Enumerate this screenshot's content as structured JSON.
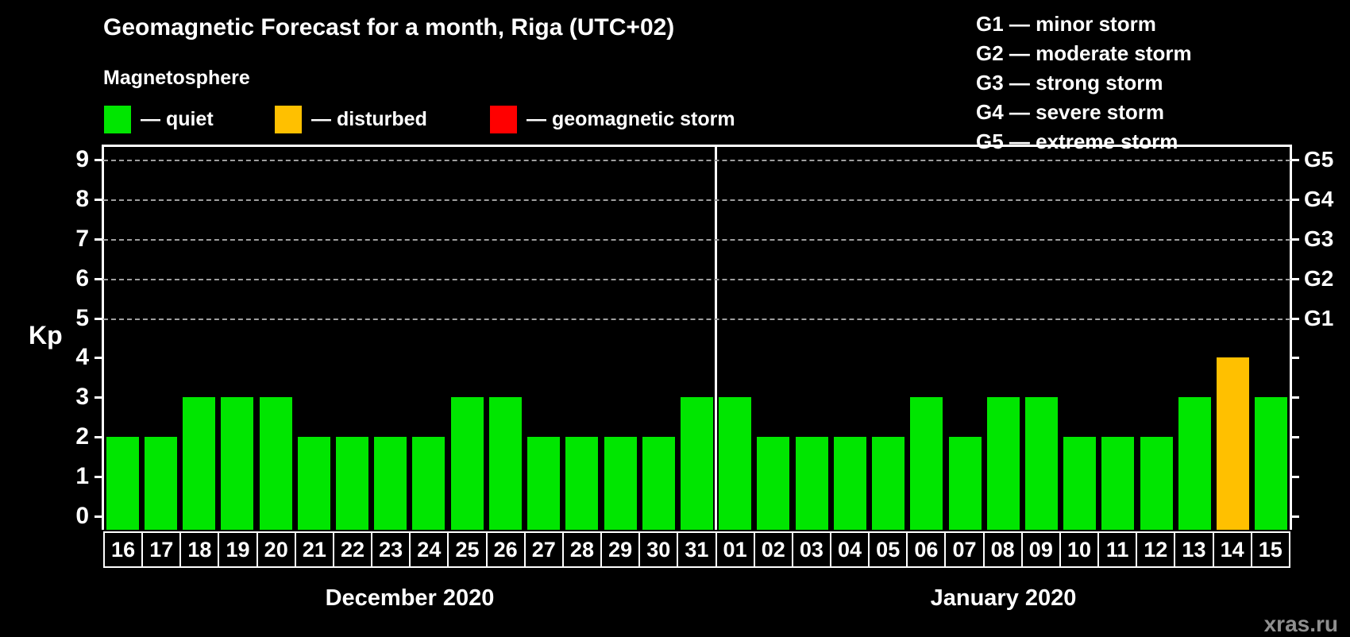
{
  "title": "Geomagnetic Forecast for a month, Riga (UTC+02)",
  "subtitle": "Magnetosphere",
  "colors": {
    "quiet": "#00e600",
    "disturbed": "#ffc000",
    "storm": "#ff0000",
    "axis": "#ffffff",
    "grid": "#9f9f9f",
    "background": "#000000",
    "watermark": "#8f8f8f"
  },
  "legend": {
    "items": [
      {
        "name": "quiet",
        "label": "— quiet",
        "color": "#00e600"
      },
      {
        "name": "disturbed",
        "label": "— disturbed",
        "color": "#ffc000"
      },
      {
        "name": "storm",
        "label": "— geomagnetic storm",
        "color": "#ff0000"
      }
    ]
  },
  "storm_scale": [
    "G1 — minor storm",
    "G2 — moderate storm",
    "G3 — strong storm",
    "G4 — severe storm",
    "G5 — extreme storm"
  ],
  "axes": {
    "y_label": "Kp",
    "y_ticks": [
      0,
      1,
      2,
      3,
      4,
      5,
      6,
      7,
      8,
      9
    ],
    "right_labels": [
      {
        "label": "G1",
        "kp": 5
      },
      {
        "label": "G2",
        "kp": 6
      },
      {
        "label": "G3",
        "kp": 7
      },
      {
        "label": "G4",
        "kp": 8
      },
      {
        "label": "G5",
        "kp": 9
      }
    ]
  },
  "months": [
    {
      "label": "December 2020",
      "days": 16
    },
    {
      "label": "January 2020",
      "days": 15
    }
  ],
  "watermark": "xras.ru",
  "chart_data": {
    "type": "bar",
    "title": "Geomagnetic Forecast for a month, Riga (UTC+02)",
    "ylabel": "Kp",
    "ylim": [
      0,
      9.6
    ],
    "grid": "horizontal dashed lines at Kp 5,6,7,8,9 (G1–G5 levels)",
    "legend_position": "top-left (quiet/disturbed/storm), top-right (G-scale)",
    "categories": [
      "16",
      "17",
      "18",
      "19",
      "20",
      "21",
      "22",
      "23",
      "24",
      "25",
      "26",
      "27",
      "28",
      "29",
      "30",
      "31",
      "01",
      "02",
      "03",
      "04",
      "05",
      "06",
      "07",
      "08",
      "09",
      "10",
      "11",
      "12",
      "13",
      "14",
      "15"
    ],
    "values": [
      2,
      2,
      3,
      3,
      3,
      2,
      2,
      2,
      2,
      3,
      3,
      2,
      2,
      2,
      2,
      3,
      3,
      2,
      2,
      2,
      2,
      3,
      2,
      3,
      3,
      2,
      2,
      2,
      3,
      4,
      3
    ],
    "statuses": [
      "quiet",
      "quiet",
      "quiet",
      "quiet",
      "quiet",
      "quiet",
      "quiet",
      "quiet",
      "quiet",
      "quiet",
      "quiet",
      "quiet",
      "quiet",
      "quiet",
      "quiet",
      "quiet",
      "quiet",
      "quiet",
      "quiet",
      "quiet",
      "quiet",
      "quiet",
      "quiet",
      "quiet",
      "quiet",
      "quiet",
      "quiet",
      "quiet",
      "quiet",
      "disturbed",
      "quiet"
    ],
    "month_split_index": 16,
    "months": [
      "December 2020",
      "January 2020"
    ]
  }
}
